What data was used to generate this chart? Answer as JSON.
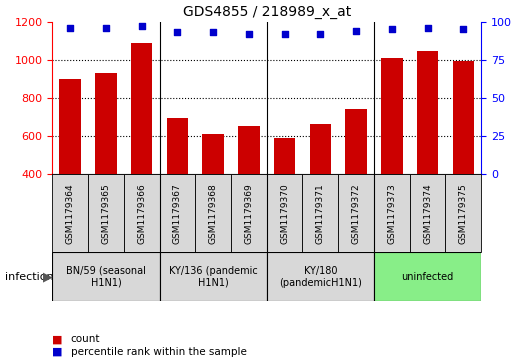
{
  "title": "GDS4855 / 218989_x_at",
  "samples": [
    "GSM1179364",
    "GSM1179365",
    "GSM1179366",
    "GSM1179367",
    "GSM1179368",
    "GSM1179369",
    "GSM1179370",
    "GSM1179371",
    "GSM1179372",
    "GSM1179373",
    "GSM1179374",
    "GSM1179375"
  ],
  "counts": [
    900,
    930,
    1090,
    695,
    610,
    655,
    592,
    663,
    740,
    1010,
    1048,
    995
  ],
  "percentiles": [
    96,
    96,
    97,
    93,
    93,
    92,
    92,
    92,
    94,
    95,
    96,
    95
  ],
  "bar_color": "#cc0000",
  "dot_color": "#0000cc",
  "ylim_left": [
    400,
    1200
  ],
  "yticks_left": [
    400,
    600,
    800,
    1000,
    1200
  ],
  "ylim_right": [
    0,
    100
  ],
  "yticks_right": [
    0,
    25,
    50,
    75,
    100
  ],
  "groups": [
    {
      "label": "BN/59 (seasonal\nH1N1)",
      "start": 0,
      "end": 3,
      "color": "#d8d8d8"
    },
    {
      "label": "KY/136 (pandemic\nH1N1)",
      "start": 3,
      "end": 6,
      "color": "#d8d8d8"
    },
    {
      "label": "KY/180\n(pandemicH1N1)",
      "start": 6,
      "end": 9,
      "color": "#d8d8d8"
    },
    {
      "label": "uninfected",
      "start": 9,
      "end": 12,
      "color": "#88ee88"
    }
  ],
  "sample_box_color": "#d8d8d8",
  "infection_label": "infection",
  "legend_count": "count",
  "legend_percentile": "percentile rank within the sample",
  "dividers": [
    3,
    6,
    9
  ]
}
